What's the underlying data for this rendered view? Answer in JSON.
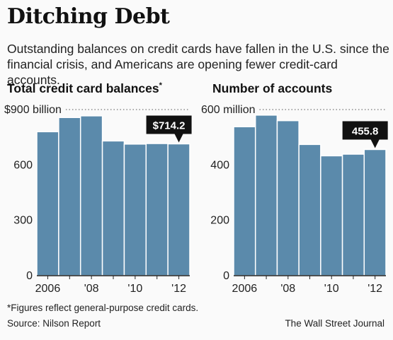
{
  "header": {
    "title": "Ditching Debt",
    "subtitle": "Outstanding balances on credit cards have fallen in the U.S. since the financial crisis, and Americans are opening fewer credit-card accounts."
  },
  "colors": {
    "bar": "#5b8aab",
    "bar_stroke": "#ffffff",
    "grid_dotted": "#555555",
    "callout_bg": "#111111",
    "callout_text": "#ffffff"
  },
  "chart_data": [
    {
      "type": "bar",
      "title": "Total credit card balances",
      "title_marker": "*",
      "top_tick_label": "$900 billion",
      "categories": [
        2006,
        2007,
        2008,
        2009,
        2010,
        2011,
        2012
      ],
      "x_tick_labels": [
        "2006",
        "",
        "'08",
        "",
        "'10",
        "",
        "'12"
      ],
      "values": [
        780,
        857,
        866,
        730,
        713,
        716,
        714.2
      ],
      "ylim": [
        0,
        900
      ],
      "y_ticks": [
        0,
        300,
        600,
        900
      ],
      "y_tick_labels": [
        "0",
        "300",
        "600",
        "$900 billion"
      ],
      "callout": {
        "category": 2012,
        "label": "$714.2"
      }
    },
    {
      "type": "bar",
      "title": "Number of accounts",
      "top_tick_label": "600 million",
      "categories": [
        2006,
        2007,
        2008,
        2009,
        2010,
        2011,
        2012
      ],
      "x_tick_labels": [
        "2006",
        "",
        "'08",
        "",
        "'10",
        "",
        "'12"
      ],
      "values": [
        538,
        580,
        560,
        474,
        433,
        439,
        455.8
      ],
      "ylim": [
        0,
        600
      ],
      "y_ticks": [
        0,
        200,
        400,
        600
      ],
      "y_tick_labels": [
        "0",
        "200",
        "400",
        "600 million"
      ],
      "callout": {
        "category": 2012,
        "label": "455.8"
      }
    }
  ],
  "footer": {
    "footnote": "*Figures reflect general-purpose credit cards.",
    "source": "Source: Nilson Report",
    "credit": "The Wall Street Journal"
  }
}
